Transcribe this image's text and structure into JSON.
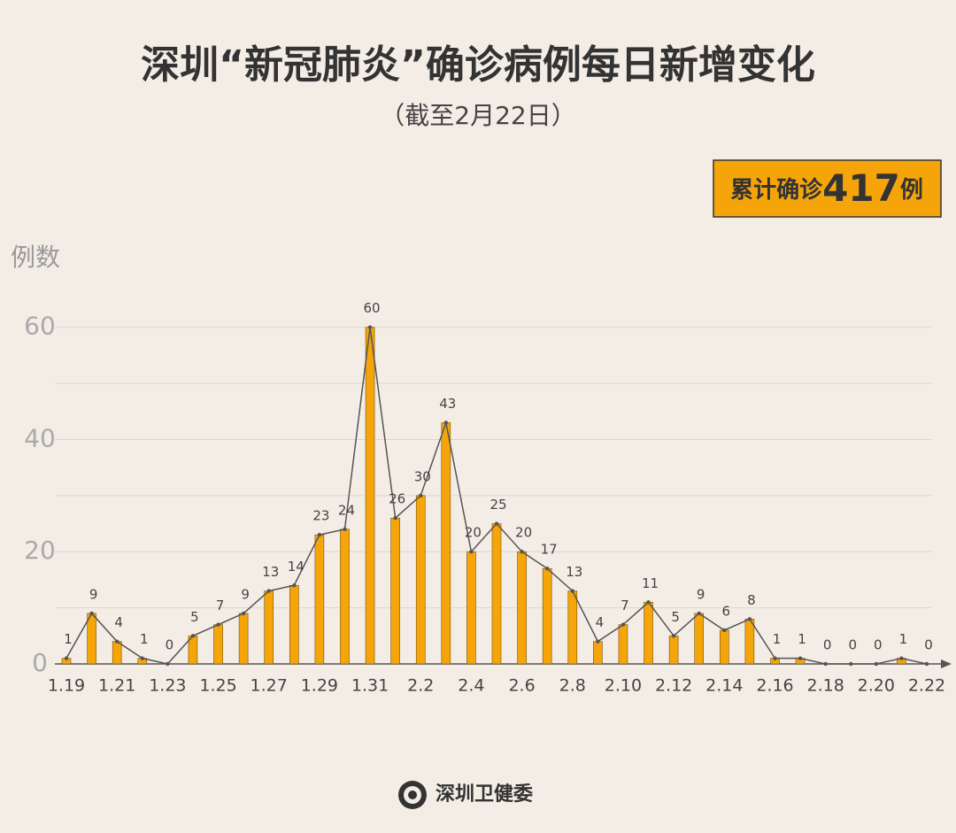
{
  "chart_data": {
    "type": "bar-line",
    "title": "深圳“新冠肺炎”确诊病例每日新增变化",
    "subtitle": "（截至2月22日）",
    "badge": {
      "prefix": "累计确诊",
      "total": 417,
      "suffix": "例"
    },
    "y_label": "例数",
    "source": "深圳卫健委",
    "categories": [
      "1.19",
      null,
      "1.21",
      null,
      "1.23",
      null,
      "1.25",
      null,
      "1.27",
      null,
      "1.29",
      null,
      "1.31",
      null,
      "2.2",
      null,
      "2.4",
      null,
      "2.6",
      null,
      "2.8",
      null,
      "2.10",
      null,
      "2.12",
      null,
      "2.14",
      null,
      "2.16",
      null,
      "2.18",
      null,
      "2.20",
      null,
      "2.22"
    ],
    "values": [
      1,
      9,
      4,
      1,
      0,
      5,
      7,
      9,
      13,
      14,
      23,
      24,
      60,
      26,
      30,
      43,
      20,
      25,
      20,
      17,
      13,
      4,
      7,
      11,
      5,
      9,
      6,
      8,
      1,
      1,
      0,
      0,
      0,
      1,
      0
    ],
    "bar_color": "#f5a50a",
    "line_color": "#555555",
    "ylim": [
      0,
      65
    ],
    "yticks": [
      0,
      20,
      40,
      60
    ],
    "minor_yticks": [
      10,
      30,
      50
    ],
    "grid": true
  }
}
